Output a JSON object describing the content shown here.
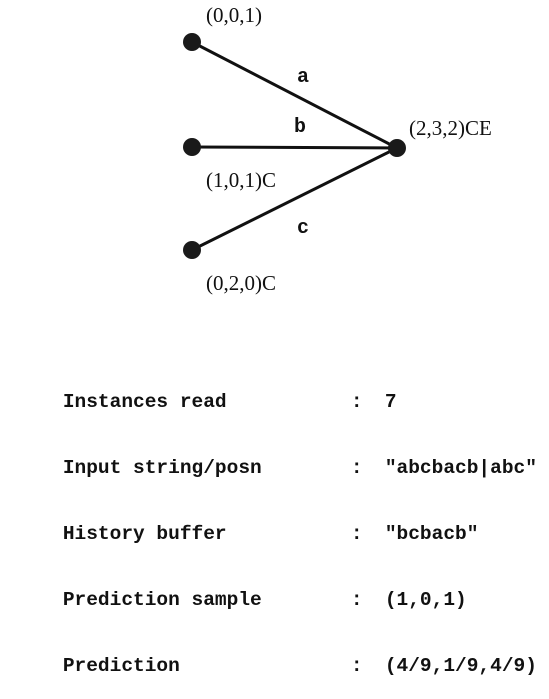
{
  "diagram": {
    "nodes": [
      {
        "id": "top",
        "label": "(0,0,1)"
      },
      {
        "id": "middle",
        "label": "(1,0,1)C"
      },
      {
        "id": "bottom",
        "label": "(0,2,0)C"
      },
      {
        "id": "hub",
        "label": "(2,3,2)CE"
      }
    ],
    "edges": [
      {
        "from": "top",
        "to": "hub",
        "label": "a"
      },
      {
        "from": "middle",
        "to": "hub",
        "label": "b"
      },
      {
        "from": "bottom",
        "to": "hub",
        "label": "c"
      }
    ],
    "colors": {
      "ink": "#111111",
      "node": "#1a1a1a"
    }
  },
  "status": {
    "rows": [
      {
        "key": "Instances read",
        "sep": ":",
        "value": "7"
      },
      {
        "key": "Input string/posn",
        "sep": ":",
        "value": "\"abcbacb|abc\""
      },
      {
        "key": "History buffer",
        "sep": ":",
        "value": "\"bcbacb\""
      },
      {
        "key": "Prediction sample",
        "sep": ":",
        "value": "(1,0,1)"
      },
      {
        "key": "Prediction",
        "sep": ":",
        "value": "(4/9,1/9,4/9)"
      }
    ]
  }
}
